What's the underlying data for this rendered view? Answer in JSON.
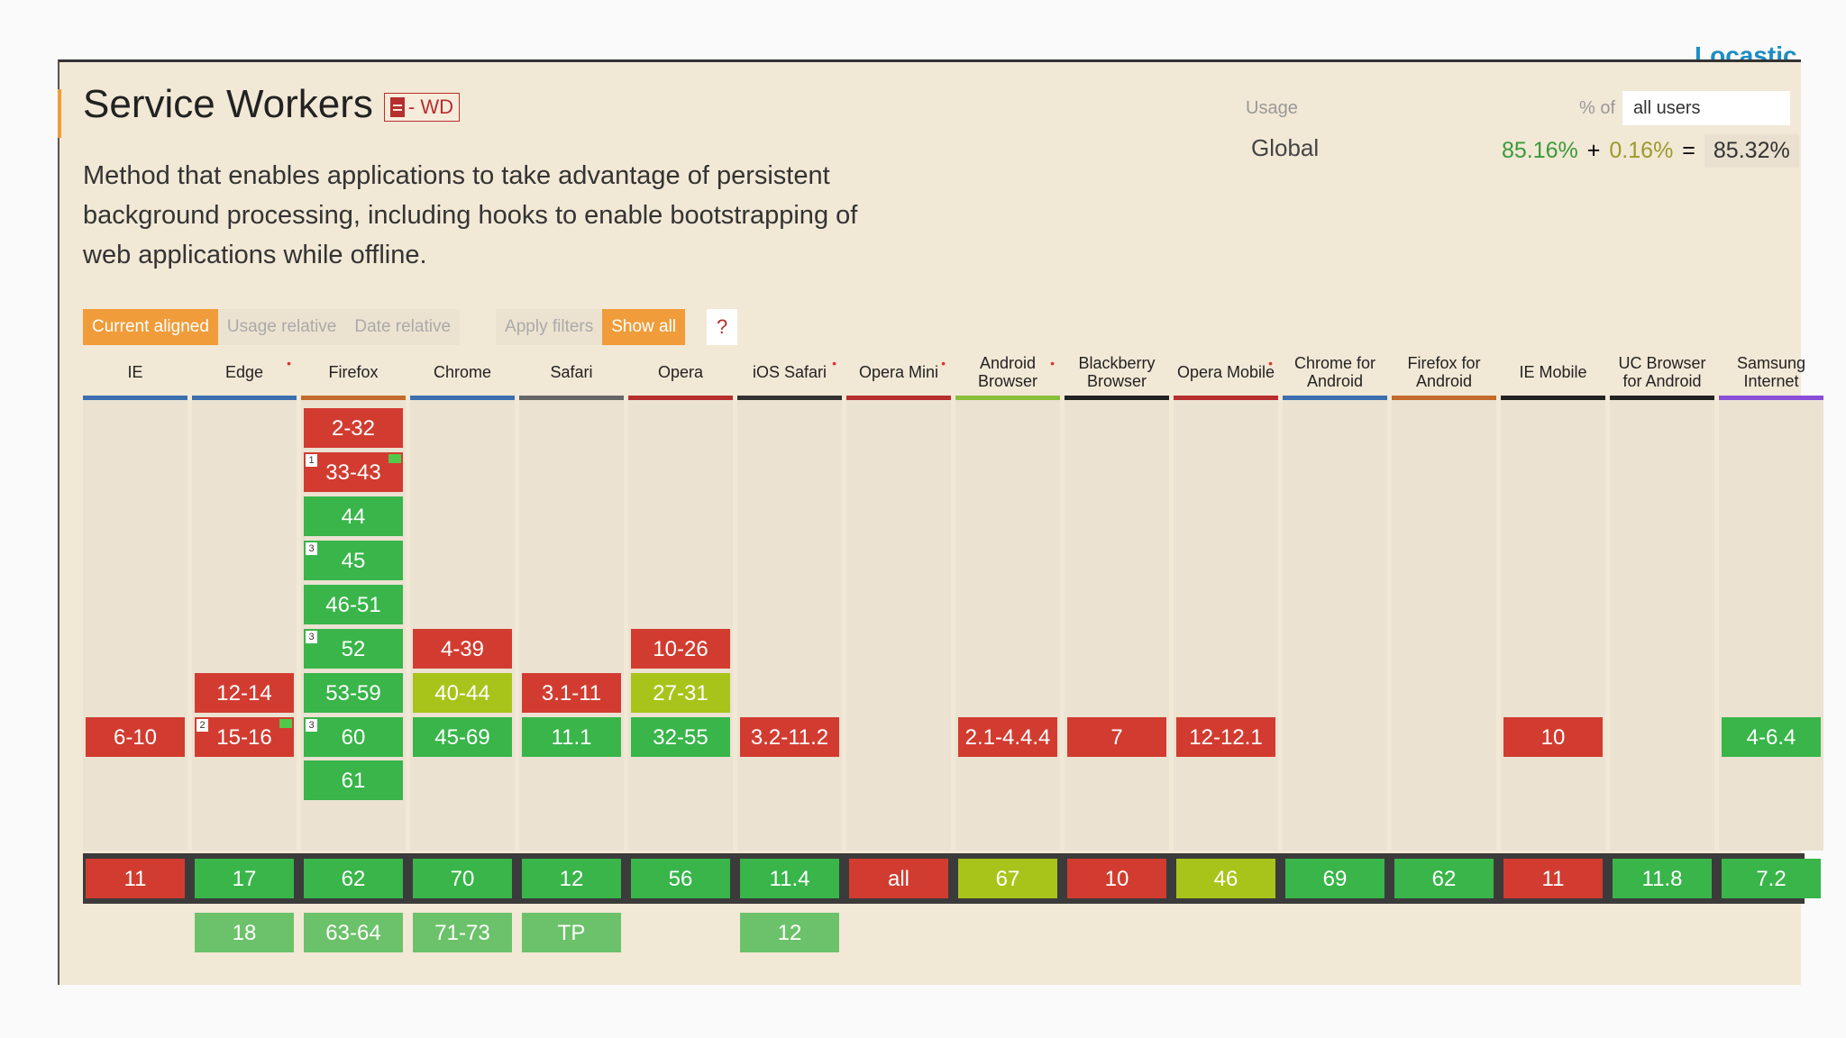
{
  "brand": "Locastic",
  "feature": {
    "title": "Service Workers",
    "status": "- WD",
    "description": "Method that enables applications to take advantage of persistent background processing, including hooks to enable bootstrapping of web applications while offline."
  },
  "usage": {
    "label": "Usage",
    "pct_of": "% of",
    "user_select_value": "all users",
    "region": "Global",
    "full": "85.16%",
    "plus": "+",
    "partial": "0.16%",
    "equals": "=",
    "total": "85.32%"
  },
  "filters": {
    "current_aligned": "Current aligned",
    "usage_relative": "Usage relative",
    "date_relative": "Date relative",
    "apply_filters": "Apply filters",
    "show_all": "Show all",
    "help": "?"
  },
  "browsers": [
    {
      "name": "IE",
      "bar": "#3b6fb0",
      "star": false,
      "past": [
        {
          "v": "6-10",
          "c": "red",
          "row": 7
        }
      ],
      "current": {
        "v": "11",
        "c": "red"
      },
      "future": []
    },
    {
      "name": "Edge",
      "bar": "#3b6fb0",
      "star": true,
      "past": [
        {
          "v": "12-14",
          "c": "red",
          "row": 6
        },
        {
          "v": "15-16",
          "c": "red",
          "row": 7,
          "note": "2",
          "flag": true
        }
      ],
      "current": {
        "v": "17",
        "c": "green"
      },
      "future": [
        {
          "v": "18",
          "c": "lightgreen"
        }
      ]
    },
    {
      "name": "Firefox",
      "bar": "#c46a2a",
      "star": false,
      "past": [
        {
          "v": "2-32",
          "c": "red",
          "row": 0
        },
        {
          "v": "33-43",
          "c": "red",
          "row": 1,
          "note": "1",
          "flag": true
        },
        {
          "v": "44",
          "c": "green",
          "row": 2
        },
        {
          "v": "45",
          "c": "green",
          "row": 3,
          "note": "3"
        },
        {
          "v": "46-51",
          "c": "green",
          "row": 4
        },
        {
          "v": "52",
          "c": "green",
          "row": 5,
          "note": "3"
        },
        {
          "v": "53-59",
          "c": "green",
          "row": 6
        },
        {
          "v": "60",
          "c": "green",
          "row": 6.99,
          "note": "3"
        },
        {
          "v": "61",
          "c": "green",
          "row": 7.98
        }
      ],
      "current": {
        "v": "62",
        "c": "green"
      },
      "future": [
        {
          "v": "63-64",
          "c": "lightgreen"
        }
      ]
    },
    {
      "name": "Chrome",
      "bar": "#3b6fb0",
      "star": false,
      "past": [
        {
          "v": "4-39",
          "c": "red",
          "row": 5
        },
        {
          "v": "40-44",
          "c": "olive",
          "row": 6
        },
        {
          "v": "45-69",
          "c": "green",
          "row": 7
        }
      ],
      "current": {
        "v": "70",
        "c": "green"
      },
      "future": [
        {
          "v": "71-73",
          "c": "lightgreen"
        }
      ]
    },
    {
      "name": "Safari",
      "bar": "#666666",
      "star": false,
      "past": [
        {
          "v": "3.1-11",
          "c": "red",
          "row": 6
        },
        {
          "v": "11.1",
          "c": "green",
          "row": 7
        }
      ],
      "current": {
        "v": "12",
        "c": "green"
      },
      "future": [
        {
          "v": "TP",
          "c": "lightgreen"
        }
      ]
    },
    {
      "name": "Opera",
      "bar": "#b72e2e",
      "star": false,
      "past": [
        {
          "v": "10-26",
          "c": "red",
          "row": 5
        },
        {
          "v": "27-31",
          "c": "olive",
          "row": 6
        },
        {
          "v": "32-55",
          "c": "green",
          "row": 7
        }
      ],
      "current": {
        "v": "56",
        "c": "green"
      },
      "future": []
    },
    {
      "name": "iOS Safari",
      "bar": "#333333",
      "star": true,
      "past": [
        {
          "v": "3.2-11.2",
          "c": "red",
          "row": 7
        }
      ],
      "current": {
        "v": "11.4",
        "c": "green"
      },
      "future": [
        {
          "v": "12",
          "c": "lightgreen"
        }
      ]
    },
    {
      "name": "Opera Mini",
      "bar": "#b72e2e",
      "star": true,
      "past": [],
      "current": {
        "v": "all",
        "c": "red"
      },
      "future": []
    },
    {
      "name": "Android Browser",
      "bar": "#8bbf3a",
      "star": true,
      "past": [
        {
          "v": "2.1-4.4.4",
          "c": "red",
          "row": 7
        }
      ],
      "current": {
        "v": "67",
        "c": "olive"
      },
      "future": []
    },
    {
      "name": "Blackberry Browser",
      "bar": "#222222",
      "star": false,
      "past": [
        {
          "v": "7",
          "c": "red",
          "row": 7
        }
      ],
      "current": {
        "v": "10",
        "c": "red"
      },
      "future": []
    },
    {
      "name": "Opera Mobile",
      "bar": "#b72e2e",
      "star": true,
      "past": [
        {
          "v": "12-12.1",
          "c": "red",
          "row": 7
        }
      ],
      "current": {
        "v": "46",
        "c": "olive"
      },
      "future": []
    },
    {
      "name": "Chrome for Android",
      "bar": "#3b6fb0",
      "star": false,
      "past": [],
      "current": {
        "v": "69",
        "c": "green"
      },
      "future": []
    },
    {
      "name": "Firefox for Android",
      "bar": "#c46a2a",
      "star": false,
      "past": [],
      "current": {
        "v": "62",
        "c": "green"
      },
      "future": []
    },
    {
      "name": "IE Mobile",
      "bar": "#222222",
      "star": false,
      "past": [
        {
          "v": "10",
          "c": "red",
          "row": 7
        }
      ],
      "current": {
        "v": "11",
        "c": "red"
      },
      "future": []
    },
    {
      "name": "UC Browser for Android",
      "bar": "#222222",
      "star": false,
      "past": [],
      "current": {
        "v": "11.8",
        "c": "green"
      },
      "future": []
    },
    {
      "name": "Samsung Internet",
      "bar": "#8a4fd8",
      "star": false,
      "past": [
        {
          "v": "4-6.4",
          "c": "green",
          "row": 7
        }
      ],
      "current": {
        "v": "7.2",
        "c": "green"
      },
      "future": []
    }
  ],
  "colors": {
    "supported": "#39b54a",
    "unsupported": "#d23c30",
    "partial": "#a8c41a",
    "future": "#6cc26a",
    "accent": "#f09c3a"
  }
}
